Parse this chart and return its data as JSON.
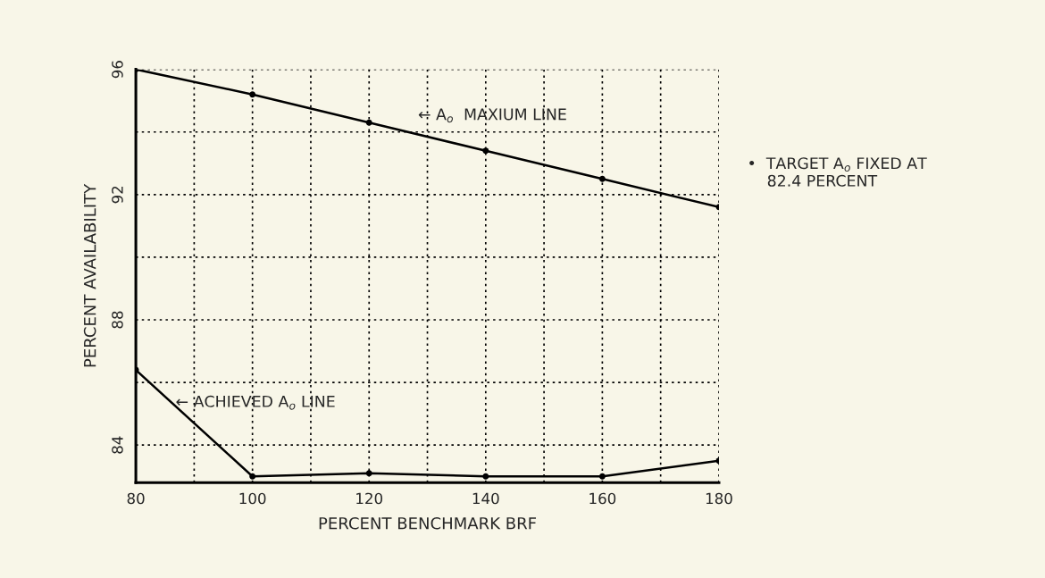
{
  "chart_data": {
    "type": "line",
    "xlabel": "PERCENT BENCHMARK BRF",
    "ylabel": "PERCENT AVAILABILITY",
    "x": [
      80,
      100,
      120,
      140,
      160,
      180
    ],
    "series": [
      {
        "color": "#000000",
        "values": [
          96,
          95.2,
          94.3,
          93.4,
          92.5,
          91.6
        ]
      },
      {
        "color": "#000000",
        "values": [
          86.4,
          83.0,
          83.1,
          83.0,
          83.0,
          83.5
        ]
      }
    ],
    "xlim": [
      80,
      180
    ],
    "xticks": [
      80,
      {
        "value": 90,
        "label": null
      },
      100,
      {
        "value": 110,
        "label": null
      },
      120,
      {
        "value": 130,
        "label": null
      },
      140,
      {
        "value": 150,
        "label": null
      },
      160,
      {
        "value": 170,
        "label": null
      },
      180
    ],
    "ylim": [
      82.8,
      96
    ],
    "yticks": [
      84,
      {
        "value": 86,
        "label": null
      },
      88,
      {
        "value": 90,
        "label": null
      },
      92,
      {
        "value": 94,
        "label": null
      },
      96
    ],
    "grid": true,
    "marker": "circle",
    "line_style": "solid",
    "annotations": [
      "← A$_{o}$  MAXIUM LINE",
      "← ACHIEVED A$_{o}$ LINE",
      "•  TARGET A$_{o}$ FIXED AT\n    82.4 PERCENT"
    ]
  }
}
